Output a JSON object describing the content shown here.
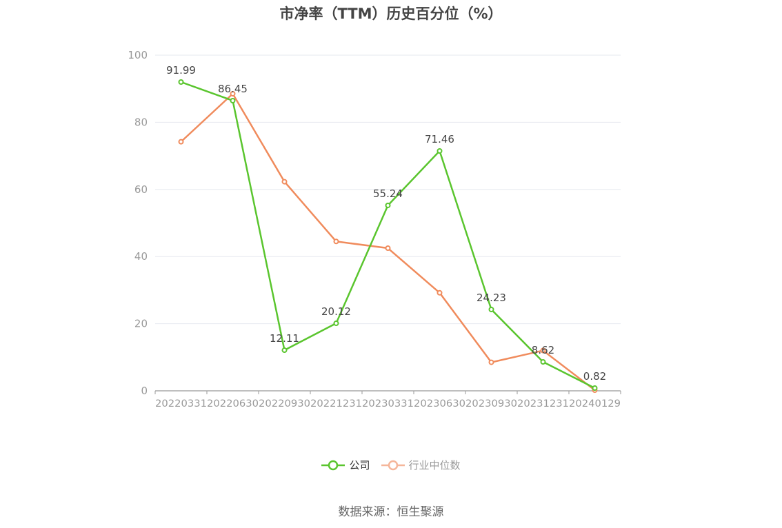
{
  "chart_data": {
    "type": "line",
    "title": "市净率（TTM）历史百分位（%）",
    "categories": [
      "20220331",
      "20220630",
      "20220930",
      "20221231",
      "20230331",
      "20230630",
      "20230930",
      "20231231",
      "20240129"
    ],
    "ylim": [
      0,
      100
    ],
    "yticks": [
      0,
      20,
      40,
      60,
      80,
      100
    ],
    "grid": true,
    "legend_position": "bottom-center",
    "series": [
      {
        "name": "公司",
        "color": "#5ac52e",
        "show_labels": true,
        "values": [
          91.99,
          86.45,
          12.11,
          20.12,
          55.24,
          71.46,
          24.23,
          8.62,
          0.82
        ]
      },
      {
        "name": "行业中位数",
        "color": "#f08b5c",
        "legend_color": "#f5b69a",
        "show_labels": false,
        "values": [
          74.2,
          88.5,
          62.3,
          44.5,
          42.5,
          29.2,
          8.5,
          12.0,
          0.2
        ]
      }
    ]
  },
  "source": "数据来源：恒生聚源"
}
